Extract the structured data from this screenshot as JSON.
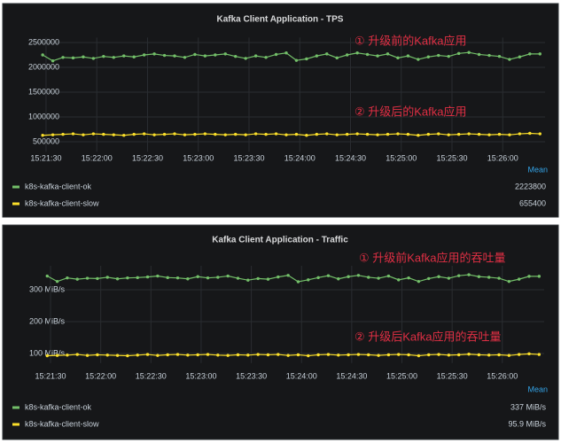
{
  "chart_data": [
    {
      "type": "line",
      "title": "Kafka Client Application - TPS",
      "x": [
        "15:21:28",
        "15:21:34",
        "15:21:40",
        "15:21:46",
        "15:21:52",
        "15:21:58",
        "15:22:04",
        "15:22:10",
        "15:22:16",
        "15:22:22",
        "15:22:28",
        "15:22:34",
        "15:22:40",
        "15:22:46",
        "15:22:52",
        "15:22:58",
        "15:23:04",
        "15:23:10",
        "15:23:16",
        "15:23:22",
        "15:23:28",
        "15:23:34",
        "15:23:40",
        "15:23:46",
        "15:23:52",
        "15:23:58",
        "15:24:04",
        "15:24:10",
        "15:24:16",
        "15:24:22",
        "15:24:28",
        "15:24:34",
        "15:24:40",
        "15:24:46",
        "15:24:52",
        "15:24:58",
        "15:25:04",
        "15:25:10",
        "15:25:16",
        "15:25:22",
        "15:25:28",
        "15:25:34",
        "15:25:40",
        "15:25:46",
        "15:25:52",
        "15:25:58",
        "15:26:04",
        "15:26:10",
        "15:26:16",
        "15:26:22"
      ],
      "xlim": [
        "15:21:24",
        "15:26:25"
      ],
      "xticks": [
        "15:21:30",
        "15:22:00",
        "15:22:30",
        "15:23:00",
        "15:23:30",
        "15:24:00",
        "15:24:30",
        "15:25:00",
        "15:25:30",
        "15:26:00"
      ],
      "ylim": [
        300000,
        2600000
      ],
      "yticks": [
        500000,
        1000000,
        1500000,
        2000000,
        2500000
      ],
      "grid": true,
      "legend_header": "Mean",
      "series": [
        {
          "name": "k8s-kafka-client-ok",
          "color": "#73bf69",
          "mean": 2223800,
          "values": [
            2250000,
            2130000,
            2200000,
            2190000,
            2210000,
            2180000,
            2220000,
            2200000,
            2230000,
            2210000,
            2250000,
            2270000,
            2240000,
            2230000,
            2200000,
            2260000,
            2230000,
            2250000,
            2270000,
            2220000,
            2180000,
            2230000,
            2200000,
            2260000,
            2290000,
            2140000,
            2170000,
            2230000,
            2270000,
            2190000,
            2250000,
            2290000,
            2260000,
            2230000,
            2270000,
            2190000,
            2230000,
            2160000,
            2210000,
            2240000,
            2220000,
            2280000,
            2300000,
            2260000,
            2240000,
            2220000,
            2160000,
            2210000,
            2270000,
            2270000
          ]
        },
        {
          "name": "k8s-kafka-client-slow",
          "color": "#fade2a",
          "mean": 655400,
          "values": [
            630000,
            640000,
            650000,
            660000,
            640000,
            660000,
            650000,
            640000,
            630000,
            650000,
            660000,
            640000,
            650000,
            660000,
            640000,
            650000,
            660000,
            650000,
            640000,
            650000,
            640000,
            660000,
            650000,
            660000,
            640000,
            650000,
            630000,
            650000,
            660000,
            640000,
            650000,
            660000,
            650000,
            640000,
            650000,
            660000,
            650000,
            630000,
            650000,
            660000,
            640000,
            650000,
            660000,
            650000,
            640000,
            650000,
            640000,
            660000,
            670000,
            660000
          ]
        }
      ],
      "annotations": [
        {
          "text": "① 升级前的Kafka应用",
          "color": "#e02f44"
        },
        {
          "text": "② 升级后的Kafka应用",
          "color": "#e02f44"
        }
      ]
    },
    {
      "type": "line",
      "title": "Kafka Client Application - Traffic",
      "x": [
        "15:21:28",
        "15:21:34",
        "15:21:40",
        "15:21:46",
        "15:21:52",
        "15:21:58",
        "15:22:04",
        "15:22:10",
        "15:22:16",
        "15:22:22",
        "15:22:28",
        "15:22:34",
        "15:22:40",
        "15:22:46",
        "15:22:52",
        "15:22:58",
        "15:23:04",
        "15:23:10",
        "15:23:16",
        "15:23:22",
        "15:23:28",
        "15:23:34",
        "15:23:40",
        "15:23:46",
        "15:23:52",
        "15:23:58",
        "15:24:04",
        "15:24:10",
        "15:24:16",
        "15:24:22",
        "15:24:28",
        "15:24:34",
        "15:24:40",
        "15:24:46",
        "15:24:52",
        "15:24:58",
        "15:25:04",
        "15:25:10",
        "15:25:16",
        "15:25:22",
        "15:25:28",
        "15:25:34",
        "15:25:40",
        "15:25:46",
        "15:25:52",
        "15:25:58",
        "15:26:04",
        "15:26:10",
        "15:26:16",
        "15:26:22"
      ],
      "xlim": [
        "15:21:24",
        "15:26:25"
      ],
      "xticks": [
        "15:21:30",
        "15:22:00",
        "15:22:30",
        "15:23:00",
        "15:23:30",
        "15:24:00",
        "15:24:30",
        "15:25:00",
        "15:25:30",
        "15:26:00"
      ],
      "ylim": [
        70,
        375
      ],
      "yticks": [
        {
          "value": 100,
          "label": "100 MiB/s"
        },
        {
          "value": 200,
          "label": "200 MiB/s"
        },
        {
          "value": 300,
          "label": "300 MiB/s"
        }
      ],
      "grid": true,
      "legend_header": "Mean",
      "series": [
        {
          "name": "k8s-kafka-client-ok",
          "color": "#73bf69",
          "mean": {
            "value": 337,
            "label": "337 MiB/s"
          },
          "values": [
            343,
            326,
            337,
            333,
            336,
            335,
            339,
            334,
            337,
            338,
            340,
            343,
            338,
            337,
            334,
            341,
            337,
            339,
            343,
            336,
            330,
            335,
            333,
            340,
            345,
            325,
            331,
            338,
            344,
            334,
            341,
            345,
            339,
            336,
            343,
            331,
            337,
            326,
            335,
            341,
            336,
            344,
            347,
            341,
            339,
            336,
            326,
            333,
            342,
            342
          ]
        },
        {
          "name": "k8s-kafka-client-slow",
          "color": "#fade2a",
          "mean": {
            "value": 95.9,
            "label": "95.9 MiB/s"
          },
          "values": [
            93,
            94,
            95,
            97,
            94,
            96,
            95,
            94,
            93,
            95,
            97,
            94,
            96,
            97,
            95,
            96,
            97,
            95,
            94,
            96,
            95,
            97,
            96,
            97,
            94,
            96,
            93,
            96,
            97,
            95,
            96,
            97,
            96,
            94,
            96,
            97,
            96,
            93,
            96,
            97,
            95,
            96,
            98,
            96,
            95,
            96,
            94,
            97,
            99,
            97
          ]
        }
      ],
      "annotations": [
        {
          "text": "① 升级前Kafka应用的吞吐量",
          "color": "#e02f44"
        },
        {
          "text": "② 升级后Kafka应用的吞吐量",
          "color": "#e02f44"
        }
      ]
    }
  ]
}
